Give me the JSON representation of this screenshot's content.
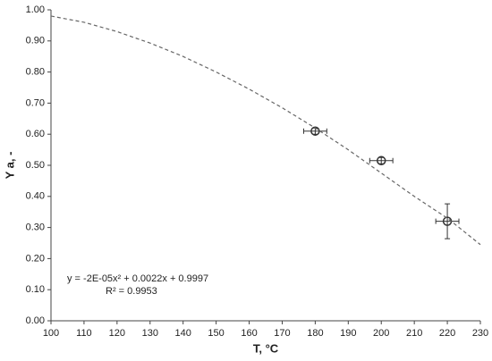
{
  "chart_data": {
    "type": "scatter",
    "xlabel": "T, °C",
    "ylabel": "Y a, -",
    "xlim": [
      100,
      230
    ],
    "ylim": [
      0,
      1
    ],
    "xticks": [
      100,
      110,
      120,
      130,
      140,
      150,
      160,
      170,
      180,
      190,
      200,
      210,
      220,
      230
    ],
    "yticks": [
      {
        "value": 0,
        "label": "0.00"
      },
      {
        "value": 0.1,
        "label": "0.10"
      },
      {
        "value": 0.2,
        "label": "0.20"
      },
      {
        "value": 0.3,
        "label": "0.30"
      },
      {
        "value": 0.4,
        "label": "0.40"
      },
      {
        "value": 0.5,
        "label": "0.50"
      },
      {
        "value": 0.6,
        "label": "0.60"
      },
      {
        "value": 0.7,
        "label": "0.70"
      },
      {
        "value": 0.8,
        "label": "0.80"
      },
      {
        "value": 0.9,
        "label": "0.90"
      },
      {
        "value": 1,
        "label": "1.00"
      }
    ],
    "grid": false,
    "series": [
      {
        "type": "scatter",
        "color": "#333333",
        "x": [
          180,
          200,
          220
        ],
        "values": [
          0.61,
          0.515,
          0.32
        ],
        "xerr": [
          3.5,
          3.5,
          3.5
        ],
        "yerr": [
          0.01,
          0.01,
          0.056
        ]
      },
      {
        "type": "line",
        "color": "#666666",
        "dashed": true,
        "x": [
          100,
          110,
          120,
          130,
          140,
          150,
          160,
          170,
          180,
          190,
          200,
          210,
          220,
          230
        ],
        "values": [
          0.98,
          0.96,
          0.93,
          0.893,
          0.85,
          0.8,
          0.745,
          0.685,
          0.62,
          0.55,
          0.475,
          0.4,
          0.33,
          0.245
        ]
      }
    ],
    "annotations": [
      "y = -2E-05x² + 0.0022x + 0.9997",
      "R² = 0.9953"
    ]
  }
}
